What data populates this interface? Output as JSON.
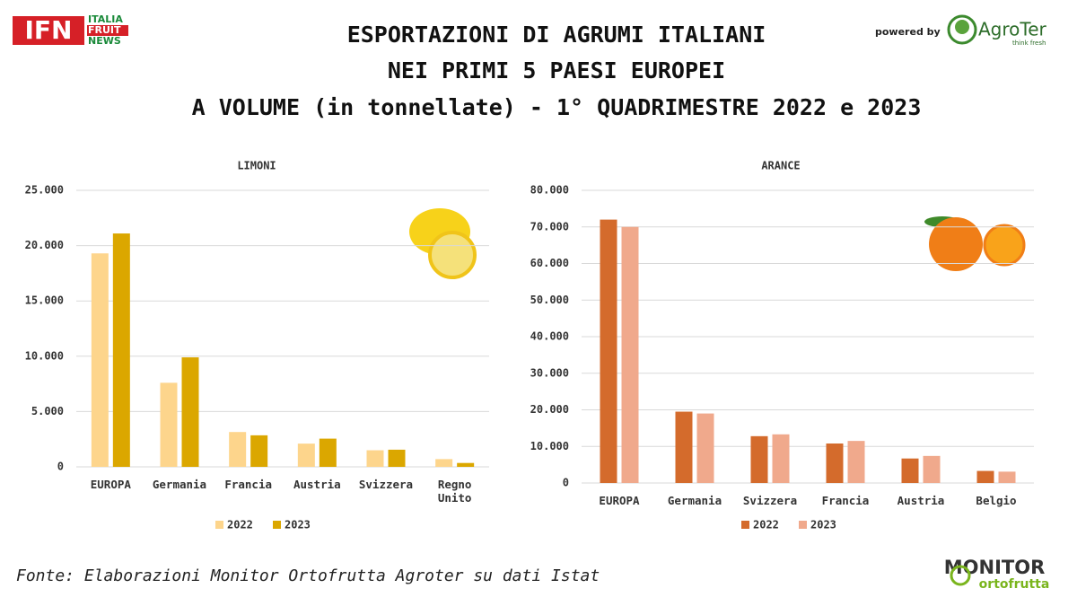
{
  "header": {
    "title_lines": [
      "ESPORTAZIONI DI AGRUMI ITALIANI",
      "NEI PRIMI 5 PAESI EUROPEI",
      "A VOLUME (in tonnellate) - 1° QUADRIMESTRE 2022 e 2023"
    ]
  },
  "logos": {
    "ifn": "IFN",
    "ifn_lines": [
      "ITALIA",
      "FRUIT",
      "NEWS"
    ],
    "powered_by": "powered by",
    "agroter": "AgroTer",
    "agroter_tagline": "think fresh",
    "monitor": "MONITOR",
    "monitor_sub": "ortofrutta"
  },
  "source": "Fonte: Elaborazioni Monitor Ortofrutta Agroter su dati Istat",
  "chart_data": [
    {
      "type": "bar",
      "title": "LIMONI",
      "categories": [
        "EUROPA",
        "Germania",
        "Francia",
        "Austria",
        "Svizzera",
        "Regno Unito"
      ],
      "series": [
        {
          "name": "2022",
          "color": "#fdd58c",
          "values": [
            19300,
            7600,
            3150,
            2100,
            1500,
            700
          ]
        },
        {
          "name": "2023",
          "color": "#dba700",
          "values": [
            21100,
            9900,
            2850,
            2550,
            1550,
            350
          ]
        }
      ],
      "ylim": [
        0,
        25000
      ],
      "yticks": [
        0,
        {
          "value": 5000,
          "label": "5.000"
        },
        {
          "value": 10000,
          "label": "10.000"
        },
        {
          "value": 15000,
          "label": "15.000"
        },
        {
          "value": 20000,
          "label": "20.000"
        },
        {
          "value": 25000,
          "label": "25.000"
        }
      ],
      "grid": true,
      "legend": "bottom"
    },
    {
      "type": "bar",
      "title": "ARANCE",
      "categories": [
        "EUROPA",
        "Germania",
        "Svizzera",
        "Francia",
        "Austria",
        "Belgio"
      ],
      "series": [
        {
          "name": "2022",
          "color": "#d46b2c",
          "values": [
            72000,
            19500,
            12800,
            10800,
            6700,
            3300
          ]
        },
        {
          "name": "2023",
          "color": "#f0a98c",
          "values": [
            70000,
            19000,
            13300,
            11500,
            7400,
            3100
          ]
        }
      ],
      "ylim": [
        0,
        80000
      ],
      "yticks": [
        0,
        {
          "value": 10000,
          "label": "10.000"
        },
        {
          "value": 20000,
          "label": "20.000"
        },
        {
          "value": 30000,
          "label": "30.000"
        },
        {
          "value": 40000,
          "label": "40.000"
        },
        {
          "value": 50000,
          "label": "50.000"
        },
        {
          "value": 60000,
          "label": "60.000"
        },
        {
          "value": 70000,
          "label": "70.000"
        },
        {
          "value": 80000,
          "label": "80.000"
        }
      ],
      "grid": true,
      "legend": "bottom"
    }
  ]
}
